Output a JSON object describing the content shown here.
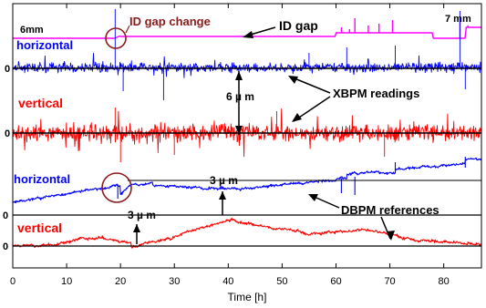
{
  "chart_data": {
    "type": "line",
    "xlabel": "Time [h]",
    "xlim": [
      0,
      87
    ],
    "x_ticks": [
      "0",
      "10",
      "20",
      "30",
      "40",
      "50",
      "60",
      "70",
      "80"
    ],
    "y_zero_labels": [
      "0",
      "0",
      "0",
      "0"
    ],
    "series": [
      {
        "name": "ID gap",
        "color": "#ff00ff"
      },
      {
        "name": "horizontal",
        "color": "#0000ff"
      },
      {
        "name": "vertical",
        "color": "#ff0000"
      },
      {
        "name": "horizontal",
        "color": "#0000ff"
      },
      {
        "name": "vertical",
        "color": "#ff0000"
      }
    ],
    "annotations": {
      "gap_6mm": "6mm",
      "gap_7mm": "7 mm",
      "id_gap_change": "ID gap change",
      "id_gap": "ID gap",
      "xbpm_readings": "XBPM readings",
      "dbpm_references": "DBPM references",
      "scale_6um": "6 µ m",
      "scale_3um_a": "3 µ m",
      "scale_3um_b": "3 µ m",
      "label_horizontal_1": "horizontal",
      "label_vertical_1": "vertical",
      "label_horizontal_2": "horizontal",
      "label_vertical_2": "vertical"
    },
    "colors": {
      "gap": "#ff00ff",
      "horizontal": "#0000ff",
      "vertical": "#ff0000",
      "annotation_dark_red": "#8b1a1a"
    }
  }
}
